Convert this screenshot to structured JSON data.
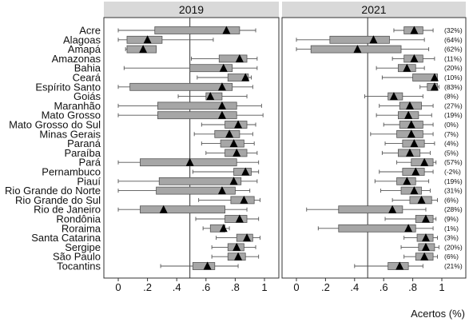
{
  "chart_data": [
    {
      "type": "boxplot",
      "panel_title": "2019",
      "xlim": [
        0,
        1
      ],
      "xticks": [
        "0",
        ".2",
        ".4",
        ".6",
        ".8",
        "1"
      ],
      "reference_line_x": 0.49,
      "states": [
        {
          "name": "Acre",
          "whisker_low": 0.0,
          "q1": 0.25,
          "q3": 0.83,
          "whisker_high": 0.94,
          "mean": 0.74
        },
        {
          "name": "Alagoas",
          "whisker_low": 0.0,
          "q1": 0.06,
          "q3": 0.3,
          "whisker_high": 0.65,
          "mean": 0.2
        },
        {
          "name": "Amapá",
          "whisker_low": 0.05,
          "q1": 0.06,
          "q3": 0.26,
          "whisker_high": 0.26,
          "mean": 0.17
        },
        {
          "name": "Amazonas",
          "whisker_low": 0.5,
          "q1": 0.69,
          "q3": 0.88,
          "whisker_high": 0.95,
          "mean": 0.83
        },
        {
          "name": "Bahia",
          "whisker_low": 0.04,
          "q1": 0.49,
          "q3": 0.78,
          "whisker_high": 0.95,
          "mean": 0.72
        },
        {
          "name": "Ceará",
          "whisker_low": 0.54,
          "q1": 0.75,
          "q3": 0.89,
          "whisker_high": 0.91,
          "mean": 0.87
        },
        {
          "name": "Espírito Santo",
          "whisker_low": 0.0,
          "q1": 0.08,
          "q3": 0.78,
          "whisker_high": 0.92,
          "mean": 0.71
        },
        {
          "name": "Goiás",
          "whisker_low": 0.41,
          "q1": 0.6,
          "q3": 0.71,
          "whisker_high": 0.88,
          "mean": 0.63
        },
        {
          "name": "Maranhão",
          "whisker_low": 0.0,
          "q1": 0.27,
          "q3": 0.81,
          "whisker_high": 0.98,
          "mean": 0.71
        },
        {
          "name": "Mato Grosso",
          "whisker_low": 0.0,
          "q1": 0.27,
          "q3": 0.81,
          "whisker_high": 0.99,
          "mean": 0.71
        },
        {
          "name": "Mato Grosso do Sul",
          "whisker_low": 0.57,
          "q1": 0.73,
          "q3": 0.88,
          "whisker_high": 0.94,
          "mean": 0.82
        },
        {
          "name": "Minas Gerais",
          "whisker_low": 0.52,
          "q1": 0.66,
          "q3": 0.83,
          "whisker_high": 0.92,
          "mean": 0.76
        },
        {
          "name": "Paraná",
          "whisker_low": 0.57,
          "q1": 0.7,
          "q3": 0.86,
          "whisker_high": 0.93,
          "mean": 0.79
        },
        {
          "name": "Paraíba",
          "whisker_low": 0.6,
          "q1": 0.73,
          "q3": 0.88,
          "whisker_high": 0.95,
          "mean": 0.81
        },
        {
          "name": "Pará",
          "whisker_low": 0.0,
          "q1": 0.15,
          "q3": 0.81,
          "whisker_high": 0.96,
          "mean": 0.49
        },
        {
          "name": "Pernambuco",
          "whisker_low": 0.51,
          "q1": 0.79,
          "q3": 0.91,
          "whisker_high": 0.96,
          "mean": 0.87
        },
        {
          "name": "Piauí",
          "whisker_low": 0.0,
          "q1": 0.28,
          "q3": 0.84,
          "whisker_high": 0.95,
          "mean": 0.79
        },
        {
          "name": "Rio Grande do Norte",
          "whisker_low": 0.0,
          "q1": 0.26,
          "q3": 0.8,
          "whisker_high": 0.9,
          "mean": 0.71
        },
        {
          "name": "Rio Grande do Sul",
          "whisker_low": 0.55,
          "q1": 0.77,
          "q3": 0.93,
          "whisker_high": 0.97,
          "mean": 0.86
        },
        {
          "name": "Rio de Janeiro",
          "whisker_low": 0.0,
          "q1": 0.15,
          "q3": 0.73,
          "whisker_high": 0.88,
          "mean": 0.31
        },
        {
          "name": "Rondônia",
          "whisker_low": 0.53,
          "q1": 0.73,
          "q3": 0.88,
          "whisker_high": 0.96,
          "mean": 0.83
        },
        {
          "name": "Roraima",
          "whisker_low": 0.58,
          "q1": 0.63,
          "q3": 0.73,
          "whisker_high": 0.76,
          "mean": 0.72
        },
        {
          "name": "Santa Catarina",
          "whisker_low": 0.67,
          "q1": 0.81,
          "q3": 0.92,
          "whisker_high": 0.97,
          "mean": 0.88
        },
        {
          "name": "Sergipe",
          "whisker_low": 0.64,
          "q1": 0.75,
          "q3": 0.86,
          "whisker_high": 0.94,
          "mean": 0.81
        },
        {
          "name": "São Paulo",
          "whisker_low": 0.64,
          "q1": 0.75,
          "q3": 0.87,
          "whisker_high": 0.96,
          "mean": 0.82
        },
        {
          "name": "Tocantins",
          "whisker_low": 0.29,
          "q1": 0.51,
          "q3": 0.66,
          "whisker_high": 0.82,
          "mean": 0.61
        }
      ]
    },
    {
      "type": "boxplot",
      "panel_title": "2021",
      "xlim": [
        0,
        1
      ],
      "xticks": [
        "0",
        ".2",
        ".4",
        ".6",
        ".8",
        "1"
      ],
      "xlabel": "Acertos (%)",
      "reference_line_x": 0.49,
      "states": [
        {
          "name": "Acre",
          "whisker_low": 0.67,
          "q1": 0.74,
          "q3": 0.87,
          "whisker_high": 0.94,
          "mean": 0.81,
          "change": "(32%)"
        },
        {
          "name": "Alagoas",
          "whisker_low": 0.0,
          "q1": 0.23,
          "q3": 0.64,
          "whisker_high": 0.88,
          "mean": 0.53,
          "change": "(64%)"
        },
        {
          "name": "Amapá",
          "whisker_low": 0.0,
          "q1": 0.1,
          "q3": 0.72,
          "whisker_high": 0.91,
          "mean": 0.42,
          "change": "(62%)"
        },
        {
          "name": "Amazonas",
          "whisker_low": 0.66,
          "q1": 0.74,
          "q3": 0.87,
          "whisker_high": 0.95,
          "mean": 0.81,
          "change": "(11%)"
        },
        {
          "name": "Bahia",
          "whisker_low": 0.55,
          "q1": 0.7,
          "q3": 0.82,
          "whisker_high": 0.88,
          "mean": 0.76,
          "change": "(20%)"
        },
        {
          "name": "Ceará",
          "whisker_low": 0.59,
          "q1": 0.8,
          "q3": 0.97,
          "whisker_high": 0.97,
          "mean": 0.95,
          "change": "(10%)"
        },
        {
          "name": "Espírito Santo",
          "whisker_low": 0.85,
          "q1": 0.9,
          "q3": 0.97,
          "whisker_high": 0.98,
          "mean": 0.95,
          "change": "(83%)"
        },
        {
          "name": "Goiás",
          "whisker_low": 0.47,
          "q1": 0.63,
          "q3": 0.73,
          "whisker_high": 0.87,
          "mean": 0.67,
          "change": "(8%)"
        },
        {
          "name": "Maranhão",
          "whisker_low": 0.57,
          "q1": 0.71,
          "q3": 0.86,
          "whisker_high": 0.94,
          "mean": 0.78,
          "change": "(27%)"
        },
        {
          "name": "Mato Grosso",
          "whisker_low": 0.55,
          "q1": 0.7,
          "q3": 0.84,
          "whisker_high": 0.93,
          "mean": 0.77,
          "change": "(19%)"
        },
        {
          "name": "Mato Grosso do Sul",
          "whisker_low": 0.6,
          "q1": 0.71,
          "q3": 0.87,
          "whisker_high": 0.94,
          "mean": 0.79,
          "change": "(0%)"
        },
        {
          "name": "Minas Gerais",
          "whisker_low": 0.51,
          "q1": 0.69,
          "q3": 0.87,
          "whisker_high": 0.94,
          "mean": 0.79,
          "change": "(7%)"
        },
        {
          "name": "Paraná",
          "whisker_low": 0.61,
          "q1": 0.73,
          "q3": 0.88,
          "whisker_high": 0.95,
          "mean": 0.81,
          "change": "(4%)"
        },
        {
          "name": "Paraíba",
          "whisker_low": 0.59,
          "q1": 0.7,
          "q3": 0.85,
          "whisker_high": 0.92,
          "mean": 0.78,
          "change": "(5%)"
        },
        {
          "name": "Pará",
          "whisker_low": 0.69,
          "q1": 0.79,
          "q3": 0.94,
          "whisker_high": 0.96,
          "mean": 0.88,
          "change": "(57%)"
        },
        {
          "name": "Pernambuco",
          "whisker_low": 0.57,
          "q1": 0.73,
          "q3": 0.88,
          "whisker_high": 0.94,
          "mean": 0.82,
          "change": "(-2%)"
        },
        {
          "name": "Piauí",
          "whisker_low": 0.54,
          "q1": 0.69,
          "q3": 0.82,
          "whisker_high": 0.91,
          "mean": 0.76,
          "change": "(19%)"
        },
        {
          "name": "Rio Grande do Norte",
          "whisker_low": 0.58,
          "q1": 0.72,
          "q3": 0.86,
          "whisker_high": 0.92,
          "mean": 0.81,
          "change": "(31%)"
        },
        {
          "name": "Rio Grande do Sul",
          "whisker_low": 0.66,
          "q1": 0.78,
          "q3": 0.93,
          "whisker_high": 0.97,
          "mean": 0.86,
          "change": "(6%)"
        },
        {
          "name": "Rio de Janeiro",
          "whisker_low": 0.07,
          "q1": 0.29,
          "q3": 0.73,
          "whisker_high": 0.89,
          "mean": 0.66,
          "change": "(28%)"
        },
        {
          "name": "Rondônia",
          "whisker_low": 0.61,
          "q1": 0.82,
          "q3": 0.94,
          "whisker_high": 0.96,
          "mean": 0.89,
          "change": "(9%)"
        },
        {
          "name": "Roraima",
          "whisker_low": 0.15,
          "q1": 0.29,
          "q3": 0.82,
          "whisker_high": 0.94,
          "mean": 0.77,
          "change": "(1%)"
        },
        {
          "name": "Santa Catarina",
          "whisker_low": 0.74,
          "q1": 0.83,
          "q3": 0.94,
          "whisker_high": 0.97,
          "mean": 0.89,
          "change": "(3%)"
        },
        {
          "name": "Sergipe",
          "whisker_low": 0.72,
          "q1": 0.84,
          "q3": 0.95,
          "whisker_high": 0.98,
          "mean": 0.89,
          "change": "(20%)"
        },
        {
          "name": "São Paulo",
          "whisker_low": 0.74,
          "q1": 0.82,
          "q3": 0.94,
          "whisker_high": 0.97,
          "mean": 0.88,
          "change": "(6%)"
        },
        {
          "name": "Tocantins",
          "whisker_low": 0.4,
          "q1": 0.63,
          "q3": 0.77,
          "whisker_high": 0.87,
          "mean": 0.71,
          "change": "(21%)"
        }
      ]
    }
  ]
}
